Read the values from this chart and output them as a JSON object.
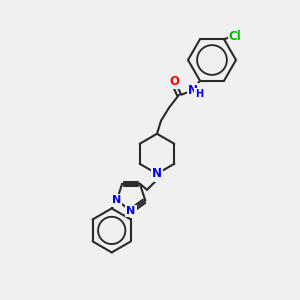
{
  "bg_color": "#f0f0f0",
  "bond_color": "#2a2a2a",
  "bond_width": 1.5,
  "atom_colors": {
    "N": "#0000ee",
    "O": "#ff0000",
    "Cl": "#00bb00",
    "C": "#2a2a2a"
  },
  "font_size": 8.5,
  "fig_size": [
    3.0,
    3.0
  ],
  "dpi": 100,
  "scale": 1.0
}
